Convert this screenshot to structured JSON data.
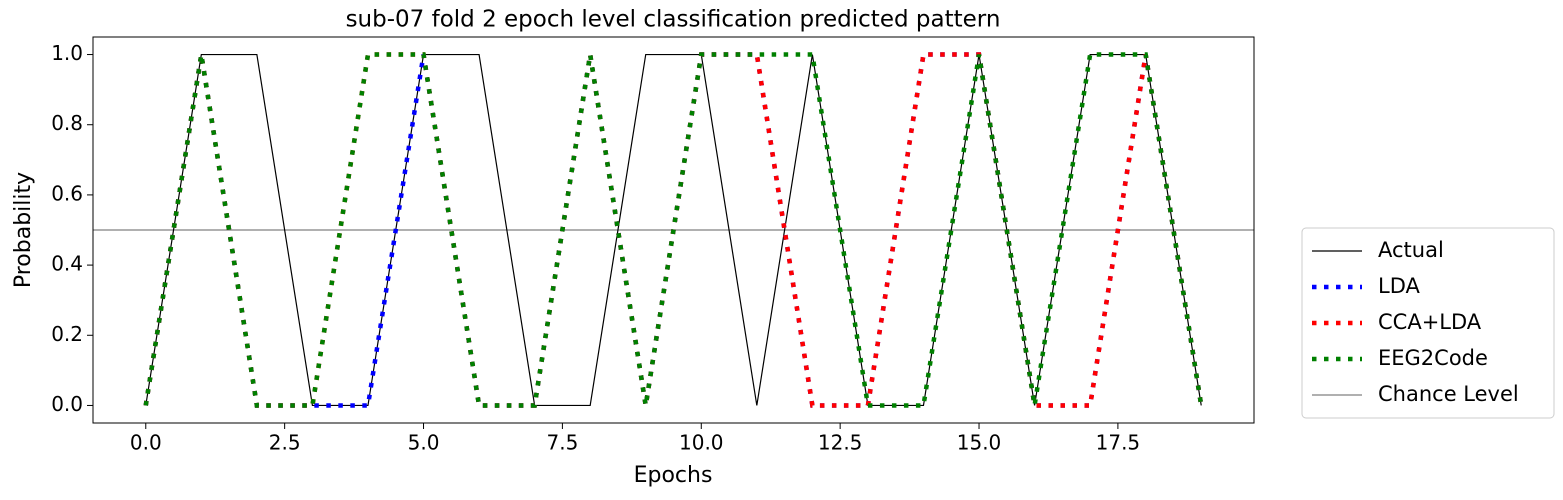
{
  "chart_data": {
    "type": "line",
    "title": "sub-07 fold 2 epoch level classification predicted pattern",
    "xlabel": "Epochs",
    "ylabel": "Probability",
    "x": [
      0,
      1,
      2,
      3,
      4,
      5,
      6,
      7,
      8,
      9,
      10,
      11,
      12,
      13,
      14,
      15,
      16,
      17,
      18,
      19
    ],
    "series": [
      {
        "name": "Actual",
        "color": "#000000",
        "style": "solid",
        "width": 1.2,
        "values": [
          0,
          1,
          1,
          0,
          0,
          1,
          1,
          0,
          0,
          1,
          1,
          0,
          1,
          0,
          0,
          1,
          0,
          1,
          1,
          0
        ]
      },
      {
        "name": "LDA",
        "color": "#0000ff",
        "style": "dotted",
        "width": 4.5,
        "values": [
          0,
          1,
          0,
          0,
          0,
          1,
          0,
          0,
          1,
          0,
          1,
          1,
          0,
          0,
          1,
          1,
          0,
          0,
          1,
          0
        ]
      },
      {
        "name": "CCA+LDA",
        "color": "#ff0000",
        "style": "dotted",
        "width": 4.5,
        "values": [
          0,
          1,
          0,
          0,
          1,
          1,
          0,
          0,
          1,
          0,
          1,
          1,
          0,
          0,
          1,
          1,
          0,
          0,
          1,
          0
        ]
      },
      {
        "name": "EEG2Code",
        "color": "#008000",
        "style": "dotted",
        "width": 4.5,
        "values": [
          0,
          1,
          0,
          0,
          1,
          1,
          0,
          0,
          1,
          0,
          1,
          1,
          1,
          0,
          0,
          1,
          0,
          1,
          1,
          0
        ]
      }
    ],
    "chance_level": {
      "name": "Chance Level",
      "value": 0.5,
      "color": "#808080"
    },
    "xlim": [
      -0.95,
      19.95
    ],
    "xticks": [
      {
        "value": 0,
        "label": "0.0"
      },
      2.5,
      {
        "value": 5,
        "label": "5.0"
      },
      7.5,
      {
        "value": 10,
        "label": "10.0"
      },
      12.5,
      {
        "value": 15,
        "label": "15.0"
      },
      17.5
    ],
    "ylim": [
      -0.05,
      1.05
    ],
    "yticks": [
      {
        "value": 0,
        "label": "0.0"
      },
      {
        "value": 0.2,
        "label": "0.2"
      },
      {
        "value": 0.4,
        "label": "0.4"
      },
      {
        "value": 0.6,
        "label": "0.6"
      },
      {
        "value": 0.8,
        "label": "0.8"
      },
      {
        "value": 1,
        "label": "1.0"
      }
    ],
    "grid": false,
    "legend": "outside right"
  }
}
